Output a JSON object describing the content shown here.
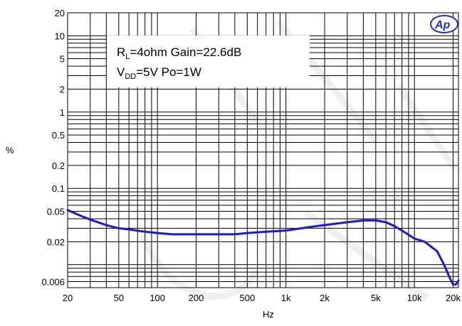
{
  "logo_text": "Ap",
  "chart_data": {
    "type": "line",
    "title": "",
    "xlabel": "Hz",
    "ylabel": "%",
    "x_scale": "log",
    "y_scale": "log",
    "xlim": [
      20,
      22000
    ],
    "ylim": [
      0.005,
      20
    ],
    "x_ticks": [
      20,
      50,
      100,
      200,
      500,
      1000,
      2000,
      5000,
      10000,
      20000
    ],
    "x_tick_labels": [
      "20",
      "50",
      "100",
      "200",
      "500",
      "1k",
      "2k",
      "5k",
      "10k",
      "20k"
    ],
    "y_ticks": [
      0.006,
      0.02,
      0.05,
      0.1,
      0.2,
      0.5,
      1,
      2,
      5,
      10,
      20
    ],
    "y_tick_labels": [
      "0.006",
      "0.02",
      "0.05",
      "0.1",
      "0.2",
      "0.5",
      "1",
      "2",
      "5",
      "10",
      "20"
    ],
    "annotation": {
      "line1_main": "R",
      "line1_sub": "L",
      "line1_rest": "=4ohm Gain=22.6dB",
      "line2_main": "V",
      "line2_sub": "DD",
      "line2_rest": "=5V Po=1W"
    },
    "grid": true,
    "line_color": "#1a1ad6",
    "series": [
      {
        "x": [
          20,
          25,
          30,
          40,
          50,
          60,
          80,
          100,
          130,
          150,
          200,
          250,
          300,
          400,
          500,
          700,
          1000,
          1500,
          2000,
          3000,
          4000,
          5000,
          6000,
          7000,
          8000,
          10000,
          12000,
          15000,
          17000,
          19000,
          20000,
          21000,
          22000
        ],
        "y": [
          0.052,
          0.044,
          0.039,
          0.033,
          0.03,
          0.029,
          0.027,
          0.026,
          0.025,
          0.025,
          0.025,
          0.025,
          0.025,
          0.025,
          0.026,
          0.027,
          0.028,
          0.031,
          0.033,
          0.036,
          0.038,
          0.038,
          0.036,
          0.032,
          0.028,
          0.022,
          0.02,
          0.015,
          0.01,
          0.0065,
          0.0055,
          0.0055,
          0.0062
        ]
      }
    ]
  }
}
